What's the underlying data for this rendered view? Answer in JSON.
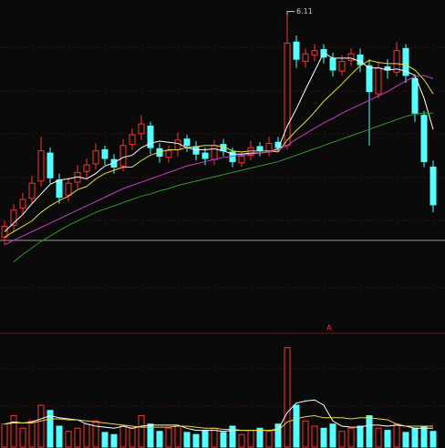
{
  "chart_data": [
    {
      "type": "candlestick",
      "open": [
        4.05,
        4.16,
        4.32,
        4.41,
        4.57,
        4.83,
        4.58,
        4.44,
        4.56,
        4.66,
        4.73,
        4.86,
        4.77,
        4.71,
        4.91,
        5.01,
        5.08,
        4.87,
        4.79,
        4.86,
        4.96,
        4.89,
        4.83,
        4.77,
        4.91,
        4.84,
        4.74,
        4.81,
        4.89,
        4.84,
        4.93,
        4.9,
        5.86,
        5.68,
        5.74,
        5.79,
        5.71,
        5.59,
        5.69,
        5.74,
        5.64,
        5.38,
        5.63,
        5.58,
        5.8,
        5.52,
        5.18,
        4.7
      ],
      "high": [
        4.2,
        4.36,
        4.46,
        4.62,
        4.98,
        4.88,
        4.64,
        4.6,
        4.72,
        4.78,
        4.92,
        4.9,
        4.82,
        4.96,
        5.06,
        5.18,
        5.12,
        4.92,
        4.9,
        5.02,
        5.0,
        4.94,
        4.88,
        4.95,
        4.96,
        4.88,
        4.84,
        4.94,
        4.93,
        4.98,
        4.98,
        6.11,
        5.92,
        5.8,
        5.84,
        5.84,
        5.76,
        5.74,
        5.8,
        5.8,
        5.7,
        5.68,
        5.7,
        5.86,
        5.84,
        5.56,
        5.22,
        4.76
      ],
      "low": [
        3.98,
        4.1,
        4.26,
        4.36,
        4.52,
        4.55,
        4.36,
        4.38,
        4.5,
        4.6,
        4.68,
        4.72,
        4.64,
        4.66,
        4.86,
        4.95,
        4.82,
        4.74,
        4.74,
        4.8,
        4.84,
        4.76,
        4.72,
        4.72,
        4.8,
        4.7,
        4.7,
        4.76,
        4.8,
        4.8,
        4.84,
        4.86,
        5.62,
        5.62,
        5.68,
        5.66,
        5.54,
        5.55,
        5.64,
        5.58,
        4.9,
        5.34,
        5.52,
        5.54,
        5.48,
        5.12,
        4.7,
        4.28
      ],
      "close": [
        4.15,
        4.3,
        4.4,
        4.55,
        4.85,
        4.6,
        4.42,
        4.55,
        4.65,
        4.72,
        4.85,
        4.78,
        4.7,
        4.9,
        5.0,
        5.1,
        4.88,
        4.8,
        4.85,
        4.95,
        4.9,
        4.82,
        4.78,
        4.9,
        4.85,
        4.75,
        4.8,
        4.88,
        4.85,
        4.92,
        4.88,
        5.85,
        5.7,
        5.75,
        5.78,
        5.72,
        5.6,
        5.68,
        5.75,
        5.65,
        5.4,
        5.62,
        5.6,
        5.78,
        5.55,
        5.2,
        4.75,
        4.35
      ],
      "up_color": "#ff3232",
      "down_color": "#54ffff",
      "ylim": [
        3.8,
        6.25
      ],
      "annotation": {
        "index": 31
      },
      "series": [
        {
          "color": "#ffffff",
          "values": [
            4.1,
            4.18,
            4.26,
            4.36,
            4.45,
            4.54,
            4.58,
            4.59,
            4.61,
            4.59,
            4.64,
            4.71,
            4.74,
            4.79,
            4.81,
            4.88,
            4.92,
            4.94,
            4.93,
            4.92,
            4.88,
            4.86,
            4.86,
            4.87,
            4.85,
            4.82,
            4.82,
            4.83,
            4.83,
            4.84,
            4.87,
            5.08,
            5.24,
            5.42,
            5.59,
            5.76,
            5.71,
            5.71,
            5.71,
            5.68,
            5.62,
            5.62,
            5.6,
            5.61,
            5.59,
            5.55,
            5.34,
            5.05
          ]
        },
        {
          "color": "#e6d84a",
          "values": [
            4.05,
            4.1,
            4.15,
            4.2,
            4.28,
            4.34,
            4.39,
            4.43,
            4.49,
            4.52,
            4.59,
            4.64,
            4.67,
            4.7,
            4.7,
            4.76,
            4.81,
            4.84,
            4.86,
            4.86,
            4.88,
            4.89,
            4.9,
            4.9,
            4.89,
            4.85,
            4.84,
            4.85,
            4.85,
            4.85,
            4.84,
            4.95,
            5.04,
            5.12,
            5.21,
            5.31,
            5.39,
            5.47,
            5.56,
            5.64,
            5.69,
            5.67,
            5.66,
            5.66,
            5.65,
            5.6,
            5.51,
            5.38
          ]
        },
        {
          "color": "#c83cc8",
          "values": [
            3.98,
            4.02,
            4.06,
            4.1,
            4.14,
            4.18,
            4.22,
            4.26,
            4.3,
            4.34,
            4.38,
            4.42,
            4.46,
            4.5,
            4.53,
            4.56,
            4.59,
            4.62,
            4.65,
            4.68,
            4.71,
            4.73,
            4.75,
            4.77,
            4.79,
            4.8,
            4.81,
            4.82,
            4.83,
            4.84,
            4.86,
            4.9,
            4.96,
            5.01,
            5.06,
            5.11,
            5.15,
            5.2,
            5.24,
            5.28,
            5.32,
            5.36,
            5.4,
            5.45,
            5.5,
            5.54,
            5.55,
            5.52
          ]
        },
        {
          "color": "#2f9a2f",
          "values": [
            null,
            3.82,
            3.89,
            3.95,
            4.01,
            4.06,
            4.11,
            4.16,
            4.2,
            4.24,
            4.28,
            4.31,
            4.34,
            4.37,
            4.4,
            4.43,
            4.45,
            4.48,
            4.5,
            4.53,
            4.55,
            4.57,
            4.59,
            4.61,
            4.63,
            4.65,
            4.67,
            4.69,
            4.71,
            4.73,
            4.75,
            4.78,
            4.81,
            4.84,
            4.87,
            4.9,
            4.93,
            4.96,
            4.99,
            5.02,
            5.05,
            5.08,
            5.11,
            5.14,
            5.17,
            5.19,
            5.2,
            5.2
          ]
        }
      ]
    },
    {
      "type": "volume",
      "values": [
        22,
        30,
        18,
        25,
        40,
        35,
        20,
        15,
        18,
        22,
        25,
        14,
        12,
        20,
        18,
        30,
        22,
        15,
        18,
        20,
        14,
        12,
        16,
        18,
        14,
        20,
        12,
        16,
        18,
        15,
        22,
        95,
        40,
        25,
        20,
        18,
        22,
        15,
        18,
        20,
        30,
        18,
        16,
        22,
        14,
        18,
        20,
        15
      ],
      "ylim": [
        0,
        100
      ],
      "marker": "A",
      "marker_color": "#ff3232",
      "series": [
        {
          "color": "#ffffff",
          "values": [
            22,
            24,
            23,
            24,
            27,
            30,
            28,
            27,
            26,
            22,
            20,
            19,
            18,
            20,
            18,
            20,
            21,
            21,
            21,
            21,
            18,
            16,
            16,
            16,
            15,
            16,
            16,
            16,
            16,
            16,
            17,
            33,
            42,
            44,
            45,
            40,
            25,
            20,
            19,
            19,
            21,
            21,
            20,
            21,
            20,
            18,
            18,
            18
          ]
        },
        {
          "color": "#e6d84a",
          "values": [
            22,
            23,
            23,
            23,
            25,
            27,
            27,
            26,
            26,
            25,
            24,
            23,
            22,
            21,
            20,
            19,
            19,
            19,
            19,
            20,
            20,
            19,
            18,
            18,
            17,
            17,
            16,
            16,
            16,
            16,
            16,
            24,
            27,
            29,
            30,
            28,
            28,
            28,
            27,
            28,
            28,
            27,
            26,
            22,
            20,
            20,
            20,
            20
          ]
        }
      ]
    }
  ]
}
